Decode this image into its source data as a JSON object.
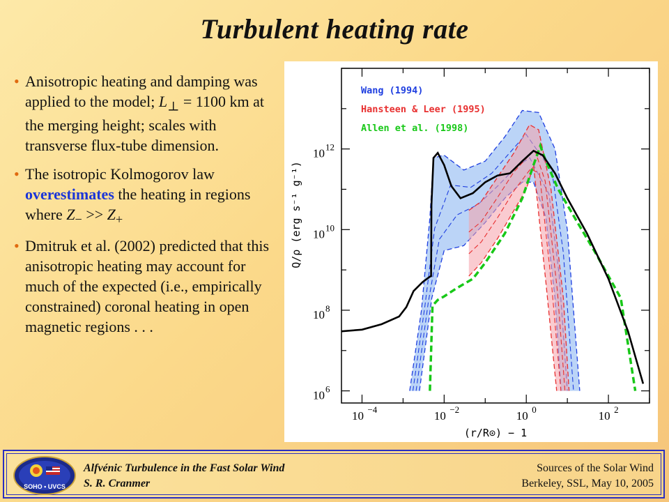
{
  "slide": {
    "title": "Turbulent heating rate",
    "bullets": [
      {
        "parts": [
          "Anisotropic heating and damping was applied to the model; ",
          "L",
          "⊥",
          " = 1100 km at the merging height; scales with transverse flux-tube dimension."
        ]
      },
      {
        "parts": [
          "The isotropic Kolmogorov law ",
          "overestimates",
          " the heating in regions where ",
          "Z",
          "−",
          " >> ",
          "Z",
          "+"
        ]
      },
      {
        "parts": [
          "Dmitruk et al. (2002) predicted that this anisotropic heating may account for much of the expected (i.e., empirically constrained) coronal heating in open magnetic regions . . ."
        ]
      }
    ]
  },
  "footer": {
    "left_line1": "Alfvénic Turbulence in the Fast Solar Wind",
    "left_line2": "S. R. Cranmer",
    "right_line1": "Sources of the Solar Wind",
    "right_line2": "Berkeley, SSL, May 10, 2005",
    "logo_text": "SOHO • UVCS"
  },
  "colors": {
    "accent_blue": "#1a35d8",
    "bullet_orange": "#e06a10",
    "footer_border": "#2a2fbf"
  },
  "chart_data": {
    "type": "line",
    "x_scale": "log",
    "y_scale": "log",
    "xlabel": "(r/R⊙) − 1",
    "ylabel": "Q/ρ  (erg s⁻¹ g⁻¹)",
    "xlim": [
      3.16e-05,
      1000
    ],
    "ylim": [
      500000,
      100000000000000
    ],
    "x_ticks": [
      {
        "value": 0.0001,
        "label": "10",
        "exp": "−4"
      },
      {
        "value": 0.01,
        "label": "10",
        "exp": "−2"
      },
      {
        "value": 1,
        "label": "10",
        "exp": "0"
      },
      {
        "value": 100,
        "label": "10",
        "exp": "2"
      }
    ],
    "y_ticks": [
      {
        "value": 1000000,
        "label": "10",
        "exp": "6"
      },
      {
        "value": 100000000,
        "label": "10",
        "exp": "8"
      },
      {
        "value": 10000000000,
        "label": "10",
        "exp": "10"
      },
      {
        "value": 1000000000000,
        "label": "10",
        "exp": "12"
      }
    ],
    "legend": [
      {
        "name": "Wang (1994)",
        "color": "#1f3fe0"
      },
      {
        "name": "Hansteen & Leer (1995)",
        "color": "#e83030"
      },
      {
        "name": "Allen et al. (1998)",
        "color": "#18c818"
      }
    ],
    "model": {
      "color": "#000000",
      "points": [
        [
          3.16e-05,
          30000000.0
        ],
        [
          0.0001,
          33000000.0
        ],
        [
          0.0003,
          45000000.0
        ],
        [
          0.0008,
          70000000.0
        ],
        [
          0.0012,
          120000000.0
        ],
        [
          0.0018,
          300000000.0
        ],
        [
          0.003,
          500000000.0
        ],
        [
          0.0045,
          680000000.0
        ],
        [
          0.0048,
          700000000.0
        ],
        [
          0.0049,
          40000000000.0
        ],
        [
          0.0055,
          600000000000.0
        ],
        [
          0.007,
          800000000000.0
        ],
        [
          0.01,
          400000000000.0
        ],
        [
          0.015,
          120000000000.0
        ],
        [
          0.025,
          60000000000.0
        ],
        [
          0.05,
          80000000000.0
        ],
        [
          0.1,
          150000000000.0
        ],
        [
          0.2,
          220000000000.0
        ],
        [
          0.4,
          250000000000.0
        ],
        [
          0.8,
          500000000000.0
        ],
        [
          1.5,
          900000000000.0
        ],
        [
          2.5,
          700000000000.0
        ],
        [
          5,
          250000000000.0
        ],
        [
          10,
          60000000000.0
        ],
        [
          30,
          8000000000.0
        ],
        [
          100,
          600000000.0
        ],
        [
          300,
          30000000.0
        ],
        [
          700,
          1500000.0
        ]
      ]
    },
    "allen": {
      "color": "#18c818",
      "points": [
        [
          0.0045,
          1000000.0
        ],
        [
          0.0052,
          130000000.0
        ],
        [
          0.007,
          180000000.0
        ],
        [
          0.01,
          220000000.0
        ],
        [
          0.02,
          350000000.0
        ],
        [
          0.05,
          600000000.0
        ],
        [
          0.1,
          1500000000.0
        ],
        [
          0.3,
          8000000000.0
        ],
        [
          0.8,
          60000000000.0
        ],
        [
          1.5,
          400000000000.0
        ],
        [
          2.2,
          1200000000000.0
        ],
        [
          3,
          500000000000.0
        ],
        [
          6,
          100000000000.0
        ],
        [
          15,
          20000000000.0
        ],
        [
          50,
          2500000000.0
        ],
        [
          200,
          200000000.0
        ],
        [
          450,
          1000000.0
        ]
      ]
    },
    "wang_band": {
      "color": "#1f3fe0",
      "upper": [
        [
          0.00145,
          1000000.0
        ],
        [
          0.0028,
          100000000.0
        ],
        [
          0.0045,
          20000000000.0
        ],
        [
          0.0055,
          600000000000.0
        ],
        [
          0.01,
          700000000000.0
        ],
        [
          0.03,
          300000000000.0
        ],
        [
          0.1,
          500000000000.0
        ],
        [
          0.3,
          2000000000000.0
        ],
        [
          0.8,
          9000000000000.0
        ],
        [
          2,
          8000000000000.0
        ],
        [
          5,
          1000000000000.0
        ],
        [
          10,
          10000000000.0
        ],
        [
          20,
          1000000.0
        ]
      ],
      "lower": [
        [
          0.0025,
          1000000.0
        ],
        [
          0.005,
          200000000.0
        ],
        [
          0.01,
          3000000000.0
        ],
        [
          0.03,
          4000000000.0
        ],
        [
          0.1,
          15000000000.0
        ],
        [
          0.3,
          60000000000.0
        ],
        [
          0.8,
          150000000000.0
        ],
        [
          1.5,
          150000000000.0
        ],
        [
          3,
          20000000000.0
        ],
        [
          5,
          200000000.0
        ],
        [
          7,
          1000000.0
        ]
      ]
    },
    "hansteen_band": {
      "color": "#e83030",
      "upper": [
        [
          0.04,
          30000000000.0
        ],
        [
          0.08,
          50000000000.0
        ],
        [
          0.2,
          200000000000.0
        ],
        [
          0.5,
          800000000000.0
        ],
        [
          1.2,
          4000000000000.0
        ],
        [
          2,
          3000000000000.0
        ],
        [
          4,
          100000000000.0
        ],
        [
          8,
          200000000.0
        ],
        [
          11,
          1000000.0
        ]
      ],
      "lower": [
        [
          0.04,
          700000000.0
        ],
        [
          0.08,
          1500000000.0
        ],
        [
          0.2,
          6000000000.0
        ],
        [
          0.5,
          30000000000.0
        ],
        [
          1,
          100000000000.0
        ],
        [
          1.5,
          400000000000.0
        ],
        [
          3,
          500000000.0
        ],
        [
          5.5,
          1000000.0
        ]
      ]
    }
  }
}
